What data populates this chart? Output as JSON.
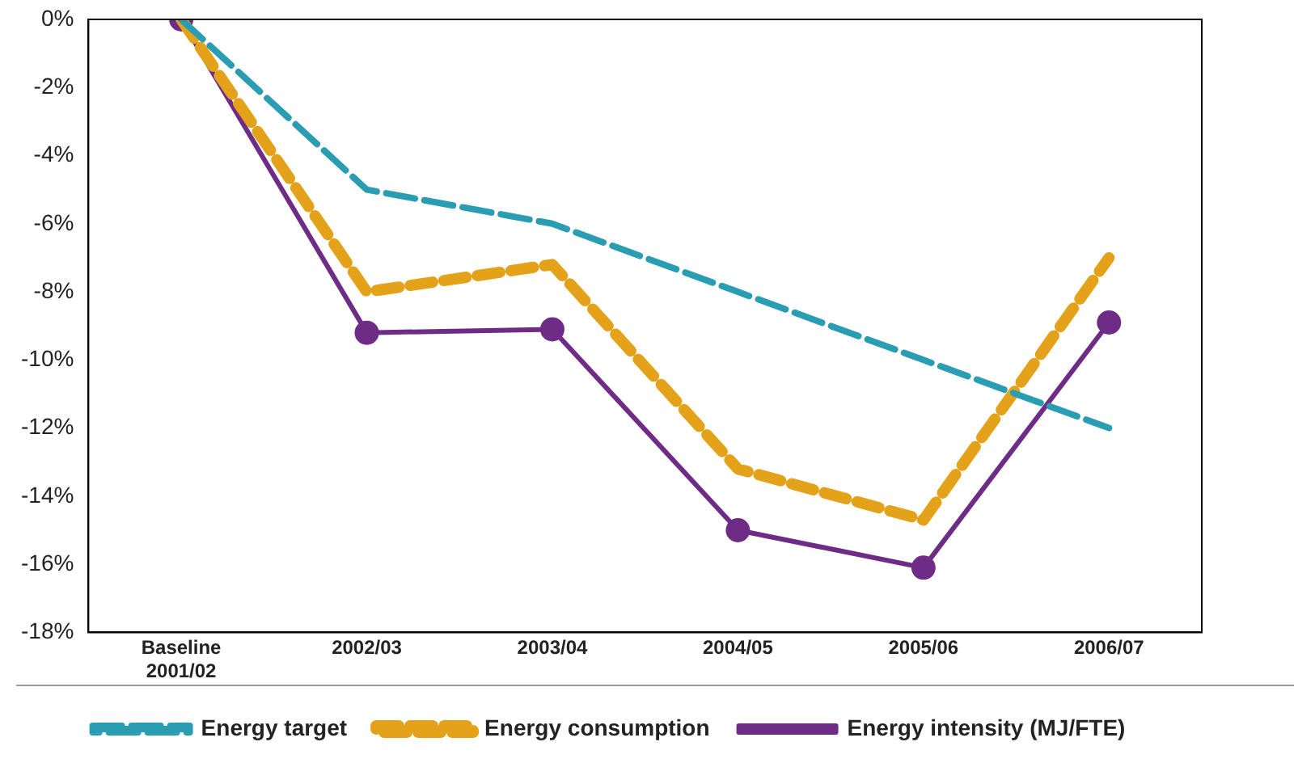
{
  "chart_data": {
    "type": "line",
    "categories": [
      "Baseline\n2001/02",
      "2002/03",
      "2003/04",
      "2004/05",
      "2005/06",
      "2006/07"
    ],
    "series": [
      {
        "name": "Energy target",
        "color": "#2b9db3",
        "line_style": "dashed",
        "marker": "none",
        "values": [
          0,
          -5,
          -6,
          -8,
          -10,
          -12
        ]
      },
      {
        "name": "Energy consumption",
        "color": "#e3a21a",
        "line_style": "dashed",
        "marker": "none",
        "values": [
          0,
          -8,
          -7.2,
          -13.2,
          -14.7,
          -7
        ]
      },
      {
        "name": "Energy intensity (MJ/FTE)",
        "color": "#6e2c87",
        "line_style": "solid",
        "marker": "circle",
        "values": [
          0,
          -9.2,
          -9.1,
          -15,
          -16.1,
          -8.9
        ]
      }
    ],
    "ylim": [
      -18,
      0
    ],
    "yticks": [
      {
        "value": -18,
        "label": "-18%"
      },
      {
        "value": -16,
        "label": "-16%"
      },
      {
        "value": -14,
        "label": "-14%"
      },
      {
        "value": -12,
        "label": "-12%"
      },
      {
        "value": -10,
        "label": "-10%"
      },
      {
        "value": -8,
        "label": "-8%"
      },
      {
        "value": -6,
        "label": "-6%"
      },
      {
        "value": -4,
        "label": "-4%"
      },
      {
        "value": -2,
        "label": "-2%"
      },
      {
        "value": 0,
        "label": "0%"
      }
    ],
    "grid": false,
    "legend": "bottom"
  }
}
